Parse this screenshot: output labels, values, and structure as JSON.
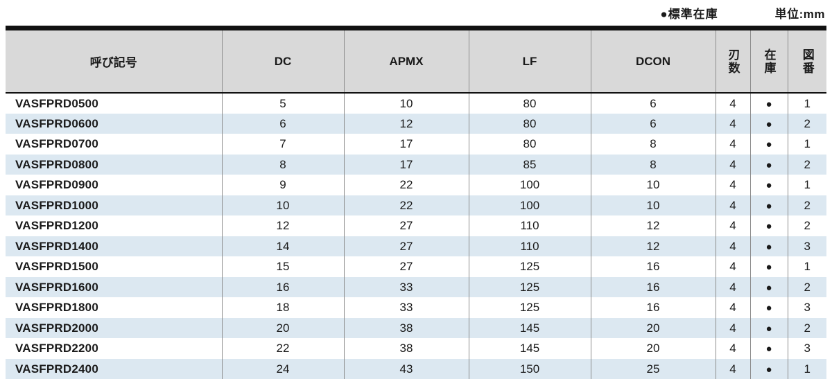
{
  "page": {
    "legend": "●標準在庫",
    "unit": "単位:mm"
  },
  "table": {
    "headers": [
      "呼び記号",
      "DC",
      "APMX",
      "LF",
      "DCON",
      "刃数",
      "在庫",
      "図番"
    ],
    "col_keys": [
      "designation",
      "dc",
      "apmx",
      "lf",
      "dcon",
      "flutes",
      "stock",
      "fig-no"
    ],
    "stock_symbol": "●",
    "rows": [
      [
        "VASFPRD0500",
        "5",
        "10",
        "80",
        "6",
        "4",
        "●",
        "1"
      ],
      [
        "VASFPRD0600",
        "6",
        "12",
        "80",
        "6",
        "4",
        "●",
        "2"
      ],
      [
        "VASFPRD0700",
        "7",
        "17",
        "80",
        "8",
        "4",
        "●",
        "1"
      ],
      [
        "VASFPRD0800",
        "8",
        "17",
        "85",
        "8",
        "4",
        "●",
        "2"
      ],
      [
        "VASFPRD0900",
        "9",
        "22",
        "100",
        "10",
        "4",
        "●",
        "1"
      ],
      [
        "VASFPRD1000",
        "10",
        "22",
        "100",
        "10",
        "4",
        "●",
        "2"
      ],
      [
        "VASFPRD1200",
        "12",
        "27",
        "110",
        "12",
        "4",
        "●",
        "2"
      ],
      [
        "VASFPRD1400",
        "14",
        "27",
        "110",
        "12",
        "4",
        "●",
        "3"
      ],
      [
        "VASFPRD1500",
        "15",
        "27",
        "125",
        "16",
        "4",
        "●",
        "1"
      ],
      [
        "VASFPRD1600",
        "16",
        "33",
        "125",
        "16",
        "4",
        "●",
        "2"
      ],
      [
        "VASFPRD1800",
        "18",
        "33",
        "125",
        "16",
        "4",
        "●",
        "3"
      ],
      [
        "VASFPRD2000",
        "20",
        "38",
        "145",
        "20",
        "4",
        "●",
        "2"
      ],
      [
        "VASFPRD2200",
        "22",
        "38",
        "145",
        "20",
        "4",
        "●",
        "3"
      ],
      [
        "VASFPRD2400",
        "24",
        "43",
        "150",
        "25",
        "4",
        "●",
        "1"
      ]
    ],
    "colors": {
      "header_bg": "#d9d9d9",
      "row_alt_bg": "#dce8f1",
      "rule_black": "#111111",
      "grid_line": "#8c8c8c"
    }
  }
}
